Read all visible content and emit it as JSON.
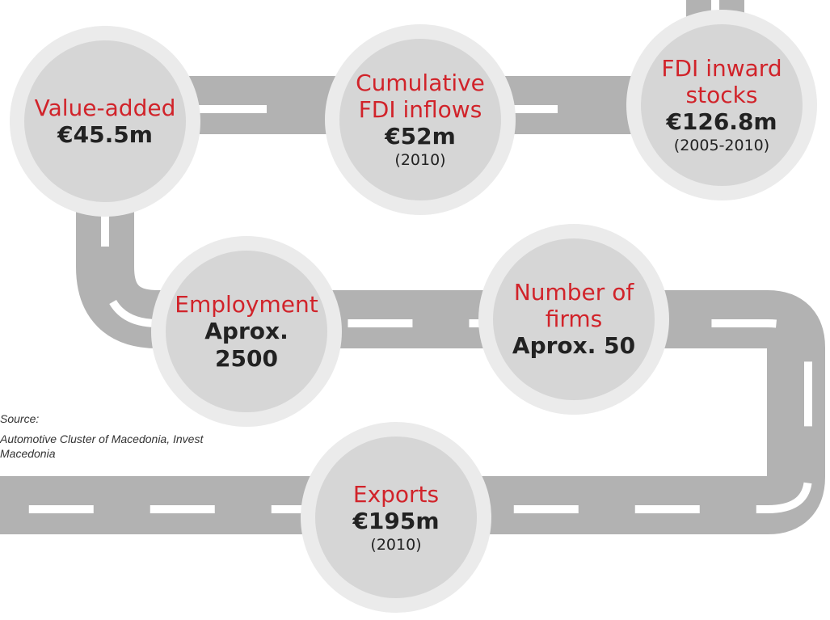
{
  "nodes": [
    {
      "label": "Value-added",
      "value": "€45.5m"
    },
    {
      "label": "Cumulative FDI inflows",
      "value": "€52m",
      "note": "(2010)"
    },
    {
      "label": "FDI inward stocks",
      "value": "€126.8m",
      "note": "(2005-2010)"
    },
    {
      "label": "Employment",
      "value": "Aprox. 2500"
    },
    {
      "label": "Number of firms",
      "value": "Aprox. 50"
    },
    {
      "label": "Exports",
      "value": "€195m",
      "note": "(2010)"
    }
  ],
  "source": {
    "title": "Source:",
    "text": "Automotive Cluster of Macedonia, Invest Macedonia"
  }
}
